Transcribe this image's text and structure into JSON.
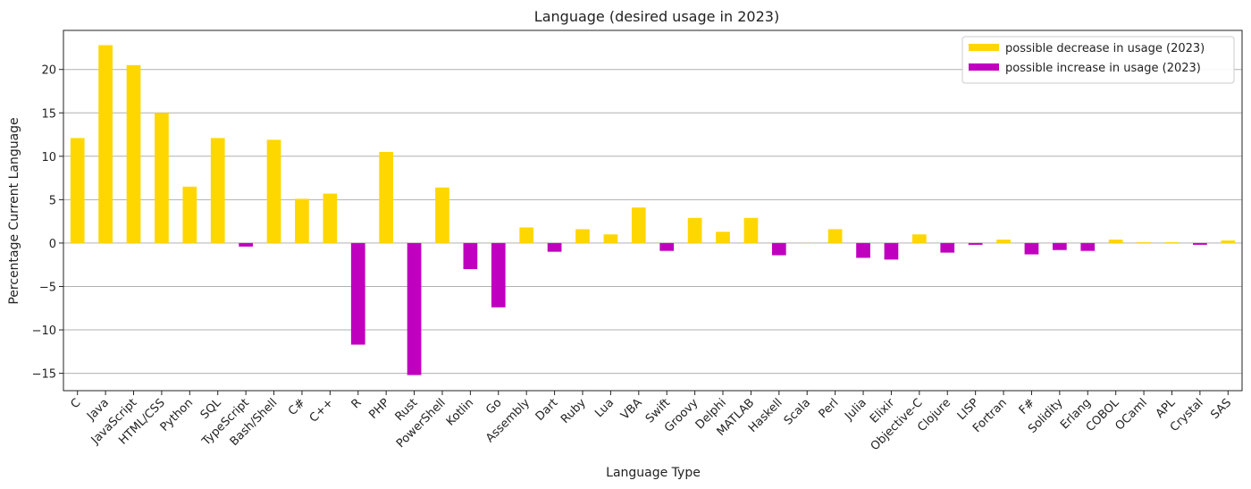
{
  "chart_data": {
    "type": "bar",
    "title": "Language (desired usage in 2023)",
    "xlabel": "Language Type",
    "ylabel": "Percentage Current Language",
    "ylim": [
      -17,
      24.5
    ],
    "yticks": [
      -15,
      -10,
      -5,
      0,
      5,
      10,
      15,
      20
    ],
    "grid": "horizontal",
    "legend_position": "top-right",
    "colors": {
      "decrease": "#FFD700",
      "increase": "#BF00BF"
    },
    "series": [
      {
        "name": "possible decrease in usage (2023)",
        "color": "#FFD700"
      },
      {
        "name": "possible increase in usage (2023)",
        "color": "#BF00BF"
      }
    ],
    "categories": [
      "C",
      "Java",
      "JavaScript",
      "HTML/CSS",
      "Python",
      "SQL",
      "TypeScript",
      "Bash/Shell",
      "C#",
      "C++",
      "R",
      "PHP",
      "Rust",
      "PowerShell",
      "Kotlin",
      "Go",
      "Assembly",
      "Dart",
      "Ruby",
      "Lua",
      "VBA",
      "Swift",
      "Groovy",
      "Delphi",
      "MATLAB",
      "Haskell",
      "Scala",
      "Perl",
      "Julia",
      "Elixir",
      "Objective-C",
      "Clojure",
      "LISP",
      "Fortran",
      "F#",
      "Solidity",
      "Erlang",
      "COBOL",
      "OCaml",
      "APL",
      "Crystal",
      "SAS"
    ],
    "values": [
      12.1,
      22.8,
      20.5,
      15.0,
      6.5,
      12.1,
      -0.4,
      11.9,
      5.1,
      5.7,
      -11.7,
      10.5,
      -15.2,
      6.4,
      -3.0,
      -7.4,
      1.8,
      -1.0,
      1.6,
      1.0,
      4.1,
      -0.9,
      2.9,
      1.3,
      2.9,
      -1.4,
      0.0,
      1.6,
      -1.7,
      -1.9,
      1.0,
      -1.1,
      -0.2,
      0.4,
      -1.3,
      -0.8,
      -0.9,
      0.4,
      0.1,
      0.1,
      -0.2,
      0.3
    ]
  }
}
